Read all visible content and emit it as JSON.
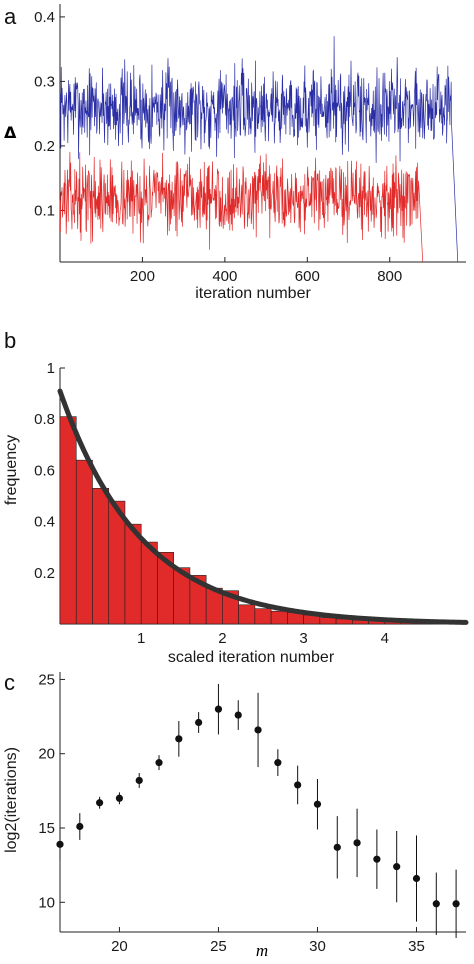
{
  "chart_data": [
    {
      "panel": "a",
      "type": "line",
      "xlabel": "iteration number",
      "ylabel": "Δ",
      "xlim": [
        0,
        985
      ],
      "ylim": [
        0.02,
        0.42
      ],
      "xticks": [
        200,
        400,
        600,
        800
      ],
      "yticks": [
        0.1,
        0.2,
        0.3,
        0.4
      ],
      "xtick_labels": [
        "200",
        "400",
        "600",
        "800"
      ],
      "ytick_labels": [
        "0.1",
        "0.2",
        "0.3",
        "0.4"
      ],
      "series": [
        {
          "color": "#2b2fa6",
          "n_points": 965,
          "mean": 0.26,
          "spread": 0.045,
          "seed": 7,
          "x": [
            0,
            100,
            200,
            300,
            400,
            500,
            600,
            665,
            700,
            800,
            900,
            950,
            965
          ],
          "y": [
            0.28,
            0.26,
            0.27,
            0.25,
            0.26,
            0.27,
            0.26,
            0.37,
            0.27,
            0.26,
            0.26,
            0.25,
            0.02
          ]
        },
        {
          "color": "#e12a2a",
          "n_points": 880,
          "mean": 0.12,
          "spread": 0.04,
          "seed": 13,
          "x": [
            0,
            100,
            200,
            300,
            400,
            500,
            600,
            700,
            800,
            870,
            880
          ],
          "y": [
            0.12,
            0.13,
            0.12,
            0.12,
            0.13,
            0.12,
            0.12,
            0.13,
            0.12,
            0.11,
            0.02
          ]
        }
      ]
    },
    {
      "panel": "b",
      "type": "bar",
      "xlabel": "scaled iteration number",
      "ylabel": "frequency",
      "xlim": [
        0,
        5.0
      ],
      "ylim": [
        0,
        1.0
      ],
      "xticks": [
        1,
        2,
        3,
        4
      ],
      "yticks": [
        0.2,
        0.4,
        0.6,
        0.8,
        1
      ],
      "xtick_labels": [
        "1",
        "2",
        "3",
        "4"
      ],
      "ytick_labels": [
        "0.2",
        "0.4",
        "0.6",
        "0.8",
        "1"
      ],
      "bin_width": 0.2,
      "bar_color": "#e12a2a",
      "bars": [
        0.81,
        0.64,
        0.53,
        0.48,
        0.39,
        0.32,
        0.28,
        0.22,
        0.19,
        0.14,
        0.13,
        0.075,
        0.06,
        0.05,
        0.045,
        0.035,
        0.025,
        0.02,
        0.015,
        0.012,
        0.01,
        0.008,
        0.006,
        0.005,
        0.004
      ],
      "curve": {
        "form": "a*exp(-x)",
        "a": 0.91,
        "color": "#333333"
      }
    },
    {
      "panel": "c",
      "type": "scatter",
      "xlabel": "m",
      "ylabel": "log2(iterations)",
      "xlim": [
        17,
        37.5
      ],
      "ylim": [
        8,
        25.5
      ],
      "xticks": [
        20,
        25,
        30,
        35
      ],
      "yticks": [
        10,
        15,
        20,
        25
      ],
      "xtick_labels": [
        "20",
        "25",
        "30",
        "35"
      ],
      "ytick_labels": [
        "10",
        "15",
        "20",
        "25"
      ],
      "x": [
        17,
        18,
        19,
        20,
        21,
        22,
        23,
        24,
        25,
        26,
        27,
        28,
        29,
        30,
        31,
        32,
        33,
        34,
        35,
        36,
        37
      ],
      "y": [
        13.9,
        15.1,
        16.7,
        17.0,
        18.2,
        19.4,
        21.0,
        22.1,
        23.0,
        22.6,
        21.6,
        19.4,
        17.9,
        16.6,
        13.7,
        14.0,
        12.9,
        12.4,
        11.6,
        9.9,
        9.9
      ],
      "yerr": [
        1.0,
        0.9,
        0.4,
        0.4,
        0.5,
        0.5,
        1.2,
        0.7,
        1.7,
        1.0,
        2.5,
        0.9,
        1.3,
        1.7,
        2.1,
        2.3,
        2.0,
        2.4,
        2.9,
        2.1,
        2.3
      ]
    }
  ]
}
